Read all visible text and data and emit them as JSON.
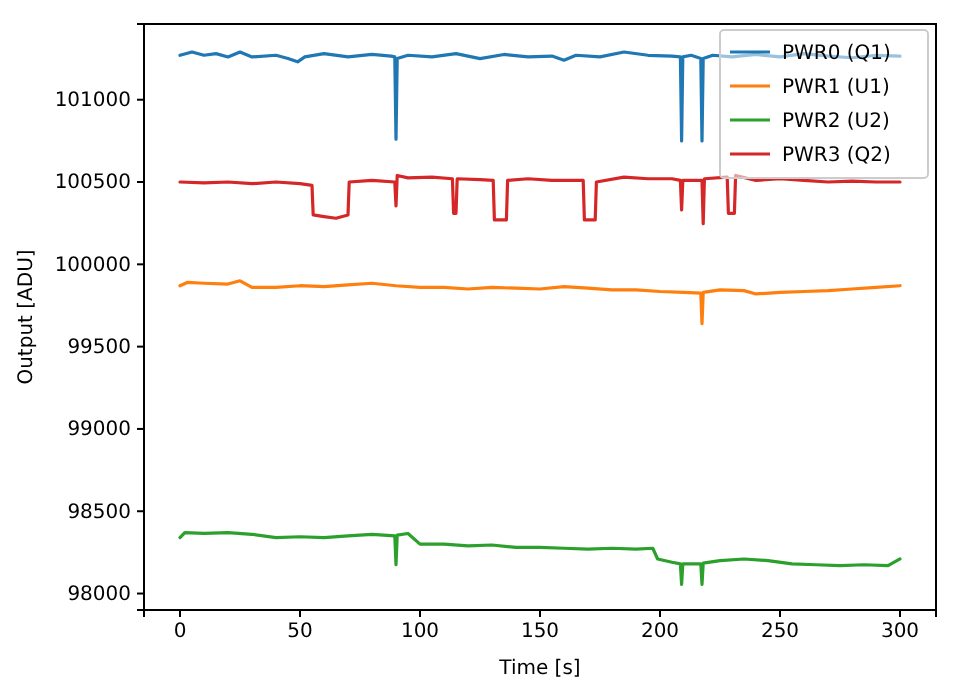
{
  "chart_data": {
    "type": "line",
    "xlabel": "Time [s]",
    "ylabel": "Output [ADU]",
    "xlim": [
      -15,
      315
    ],
    "xticks": [
      0,
      50,
      100,
      150,
      200,
      250,
      300
    ],
    "ylim": [
      97900,
      101460
    ],
    "yticks": [
      98000,
      98500,
      99000,
      99500,
      100000,
      100500,
      101000
    ],
    "legend": "top right",
    "grid": false,
    "series": [
      {
        "name": "PWR0 (Q1)",
        "color": "#1f77b4",
        "x": [
          0,
          5,
          10,
          15,
          20,
          25,
          30,
          40,
          45,
          49,
          52,
          60,
          70,
          80,
          88,
          89.5,
          90,
          90.5,
          95,
          105,
          115,
          125,
          135,
          145,
          155,
          160,
          165,
          175,
          185,
          195,
          205,
          208.5,
          209,
          209.5,
          213,
          217,
          217.5,
          218,
          222,
          230,
          240,
          250,
          260,
          270,
          280,
          290,
          300
        ],
        "values": [
          101270,
          101290,
          101270,
          101280,
          101260,
          101290,
          101260,
          101270,
          101250,
          101230,
          101260,
          101280,
          101260,
          101275,
          101265,
          101260,
          100760,
          101250,
          101270,
          101260,
          101280,
          101250,
          101275,
          101260,
          101265,
          101240,
          101270,
          101260,
          101290,
          101270,
          101265,
          101260,
          100750,
          101260,
          101270,
          101250,
          100750,
          101250,
          101270,
          101260,
          101275,
          101260,
          101280,
          101265,
          101255,
          101270,
          101265
        ]
      },
      {
        "name": "PWR1 (U1)",
        "color": "#ff7f0e",
        "x": [
          0,
          3,
          10,
          20,
          25,
          30,
          40,
          50,
          60,
          70,
          80,
          90,
          100,
          110,
          120,
          130,
          140,
          150,
          160,
          170,
          180,
          190,
          200,
          210,
          217,
          217.5,
          218,
          225,
          235,
          240,
          250,
          260,
          270,
          280,
          290,
          300
        ],
        "values": [
          99870,
          99890,
          99885,
          99880,
          99900,
          99860,
          99860,
          99870,
          99865,
          99875,
          99885,
          99870,
          99860,
          99860,
          99850,
          99860,
          99855,
          99850,
          99865,
          99855,
          99845,
          99845,
          99835,
          99830,
          99825,
          99640,
          99830,
          99845,
          99840,
          99820,
          99830,
          99835,
          99840,
          99850,
          99860,
          99870
        ]
      },
      {
        "name": "PWR2 (U2)",
        "color": "#2ca02c",
        "x": [
          0,
          2,
          10,
          20,
          30,
          40,
          50,
          60,
          70,
          80,
          89.5,
          90,
          90.5,
          95,
          100,
          110,
          120,
          130,
          140,
          150,
          160,
          170,
          180,
          190,
          197,
          199,
          205,
          208.5,
          209,
          209.5,
          217,
          217.5,
          218,
          225,
          235,
          245,
          255,
          265,
          275,
          285,
          295,
          300
        ],
        "values": [
          98340,
          98370,
          98365,
          98370,
          98360,
          98340,
          98345,
          98340,
          98350,
          98360,
          98350,
          98175,
          98355,
          98365,
          98300,
          98300,
          98290,
          98295,
          98280,
          98280,
          98275,
          98270,
          98275,
          98270,
          98275,
          98210,
          98190,
          98180,
          98055,
          98180,
          98180,
          98055,
          98185,
          98200,
          98210,
          98200,
          98180,
          98175,
          98170,
          98175,
          98170,
          98210
        ]
      },
      {
        "name": "PWR3 (Q2)",
        "color": "#d62728",
        "x": [
          0,
          10,
          20,
          30,
          40,
          50,
          55,
          55.5,
          60,
          65,
          70,
          70.5,
          80,
          89.5,
          90,
          90.5,
          95,
          105,
          113.5,
          114,
          115,
          115.5,
          125,
          130.5,
          131,
          136,
          136.5,
          145,
          155,
          168,
          168.5,
          173,
          173.5,
          185,
          195,
          205,
          208.5,
          209,
          209.5,
          217.5,
          218,
          218.5,
          228,
          228.5,
          231,
          231.5,
          240,
          250,
          260,
          270,
          280,
          290,
          300
        ],
        "values": [
          100500,
          100495,
          100500,
          100490,
          100500,
          100490,
          100480,
          100300,
          100290,
          100280,
          100300,
          100500,
          100510,
          100500,
          100355,
          100540,
          100525,
          100530,
          100520,
          100310,
          100310,
          100520,
          100515,
          100510,
          100270,
          100270,
          100510,
          100520,
          100510,
          100510,
          100270,
          100270,
          100500,
          100530,
          100520,
          100520,
          100510,
          100330,
          100510,
          100510,
          100247,
          100520,
          100530,
          100310,
          100310,
          100540,
          100510,
          100520,
          100510,
          100500,
          100505,
          100500,
          100500
        ]
      }
    ]
  }
}
